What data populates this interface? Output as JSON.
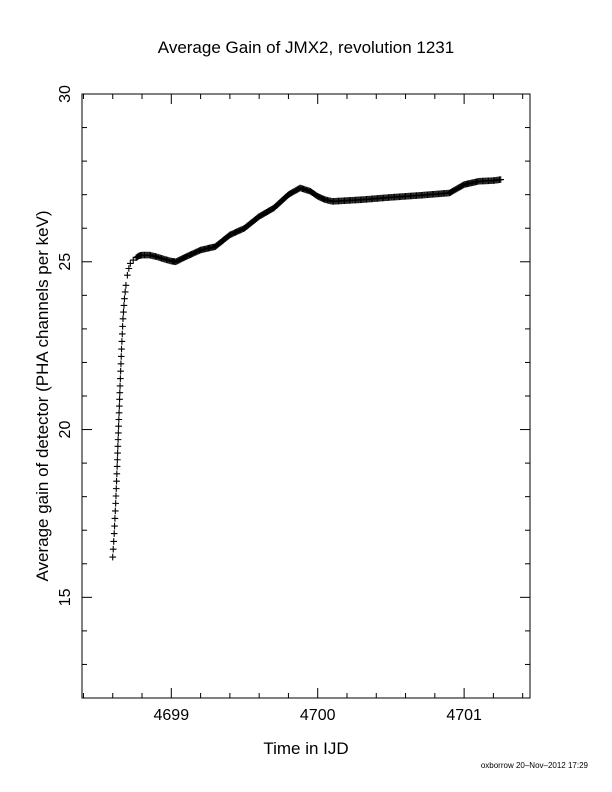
{
  "chart_data": {
    "type": "scatter",
    "title": "Average Gain of JMX2, revolution 1231",
    "xlabel": "Time in IJD",
    "ylabel": "Average gain of detector (PHA channels per keV)",
    "xlim": [
      4698.39,
      4701.45
    ],
    "ylim": [
      12,
      30
    ],
    "xticks": [
      4699,
      4700,
      4701
    ],
    "xtick_labels": [
      "4699",
      "4700",
      "4701"
    ],
    "yticks": [
      15,
      20,
      25,
      30
    ],
    "ytick_labels": [
      "15",
      "20",
      "25",
      "30"
    ],
    "marker": "plus",
    "grid": false,
    "series": [
      {
        "name": "",
        "x": [
          4698.6,
          4698.61,
          4698.62,
          4698.63,
          4698.64,
          4698.65,
          4698.66,
          4698.67,
          4698.68,
          4698.69,
          4698.7,
          4698.71,
          4698.72,
          4698.74,
          4698.76,
          4698.78,
          4698.8,
          4698.85,
          4698.9,
          4698.95,
          4699.0,
          4699.03,
          4699.1,
          4699.2,
          4699.3,
          4699.4,
          4699.5,
          4699.6,
          4699.7,
          4699.8,
          4699.88,
          4699.95,
          4700.0,
          4700.05,
          4700.1,
          4700.3,
          4700.5,
          4700.7,
          4700.9,
          4701.0,
          4701.1,
          4701.2,
          4701.25
        ],
        "y": [
          16.2,
          16.9,
          17.8,
          18.9,
          20.1,
          21.3,
          22.4,
          23.3,
          23.9,
          24.3,
          24.6,
          24.8,
          24.95,
          25.05,
          25.12,
          25.18,
          25.2,
          25.2,
          25.15,
          25.08,
          25.02,
          25.0,
          25.15,
          25.35,
          25.45,
          25.8,
          26.0,
          26.35,
          26.6,
          27.0,
          27.2,
          27.1,
          26.95,
          26.85,
          26.8,
          26.85,
          26.92,
          26.98,
          27.05,
          27.3,
          27.4,
          27.42,
          27.45
        ]
      }
    ]
  },
  "footer": {
    "credit": "oxborrow 20–Nov–2012 17:29"
  }
}
